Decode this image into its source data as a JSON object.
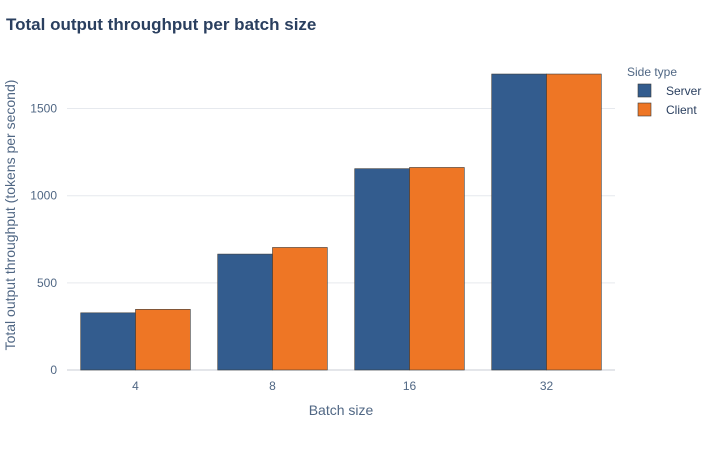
{
  "chart_data": {
    "type": "bar",
    "title": "Total output throughput per batch size",
    "xlabel": "Batch size",
    "ylabel": "Total output throughput (tokens per second)",
    "categories": [
      "4",
      "8",
      "16",
      "32"
    ],
    "series": [
      {
        "name": "Server",
        "values": [
          328,
          665,
          1155,
          1698
        ],
        "color": "#335c8e"
      },
      {
        "name": "Client",
        "values": [
          348,
          703,
          1162,
          1698
        ],
        "color": "#ee7625"
      }
    ],
    "yticks": [
      0,
      500,
      1000,
      1500
    ],
    "ylim": [
      0,
      1790
    ],
    "grid": true,
    "legend": {
      "title": "Side type",
      "position": "top-right"
    }
  }
}
